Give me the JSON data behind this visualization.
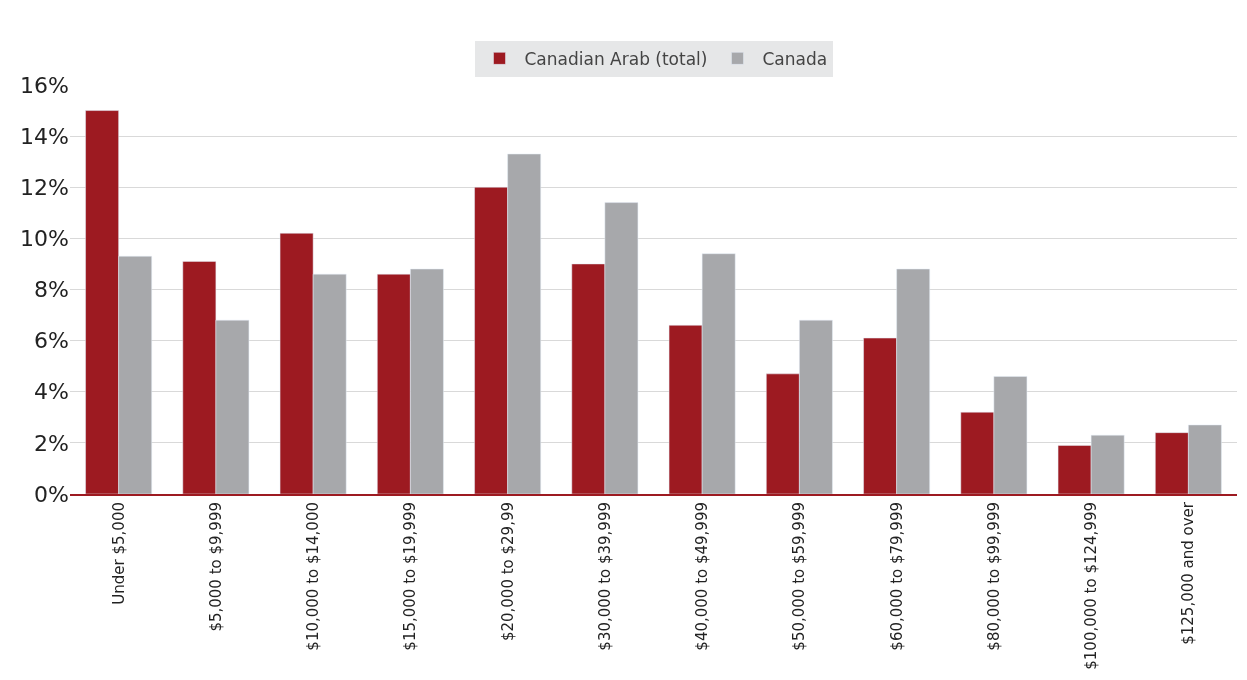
{
  "chart_data": {
    "type": "bar",
    "categories": [
      "Under $5,000",
      "$5,000 to $9,999",
      "$10,000 to $14,000",
      "$15,000 to $19,999",
      "$20,000 to $29,99",
      "$30,000 to $39,999",
      "$40,000 to $49,999",
      "$50,000 to $59,999",
      "$60,000 to $79,999",
      "$80,000 to $99,999",
      "$100,000 to $124,999",
      "$125,000 and over"
    ],
    "series": [
      {
        "name": "Canadian Arab (total)",
        "color": "#9d1a21",
        "values": [
          15.0,
          9.1,
          10.2,
          8.6,
          12.0,
          9.0,
          6.6,
          4.7,
          6.1,
          3.2,
          1.9,
          2.4
        ]
      },
      {
        "name": "Canada",
        "color": "#a7a8ab",
        "values": [
          9.3,
          6.8,
          8.6,
          8.8,
          13.3,
          11.4,
          9.4,
          6.8,
          8.8,
          4.6,
          2.3,
          2.7
        ]
      }
    ],
    "ylim": [
      0,
      16
    ],
    "yticks": [
      {
        "value": 0,
        "label": "0%"
      },
      {
        "value": 2,
        "label": "2%"
      },
      {
        "value": 4,
        "label": "4%"
      },
      {
        "value": 6,
        "label": "6%"
      },
      {
        "value": 8,
        "label": "8%"
      },
      {
        "value": 10,
        "label": "10%"
      },
      {
        "value": 12,
        "label": "12%"
      },
      {
        "value": 14,
        "label": "14%"
      },
      {
        "value": 16,
        "label": "16%"
      }
    ],
    "grid": "y",
    "legend": "top"
  }
}
